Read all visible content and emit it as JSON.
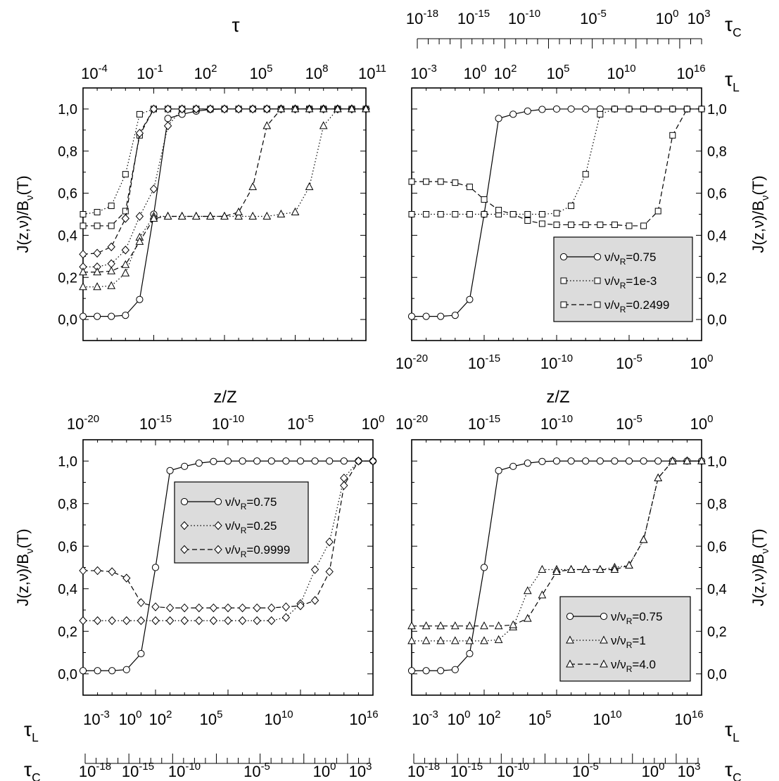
{
  "figure": {
    "labels": {
      "tau": "τ",
      "tau_C": "τ",
      "tau_C_sub": "C",
      "tau_L": "τ",
      "tau_L_sub": "L",
      "zZ": "z/Z",
      "ylabel": "J(z,ν)/B",
      "ylabel_sub": "ν",
      "ylabel_tail": "(T)"
    },
    "ytick_labels": [
      "0,0",
      "0,2",
      "0,4",
      "0,6",
      "0,8",
      "1,0"
    ]
  },
  "chart_data": [
    {
      "type": "line",
      "panel": "top-left",
      "x_label": "z/Z",
      "x_scale": "log",
      "xlim": [
        1e-20,
        1
      ],
      "top_axis": {
        "label": "τ",
        "scale": "log",
        "ticks": [
          "10^-4",
          "10^-1",
          "10^2",
          "10^5",
          "10^8",
          "10^11"
        ]
      },
      "ylabel": "J(z,ν)/Bν(T)",
      "ylim": [
        -0.1,
        1.1
      ],
      "yticks": [
        "0,0",
        "0,2",
        "0,4",
        "0,6",
        "0,8",
        "1,0"
      ],
      "legend": "none",
      "series": [
        {
          "style": "solid",
          "marker": "circle",
          "x": [
            1e-20,
            1e-19,
            1e-18,
            1e-17,
            1e-16,
            1e-15,
            1e-14,
            1e-13,
            1e-12,
            1e-11,
            1e-10,
            1e-09,
            1e-08,
            1e-07,
            1e-06,
            1e-05,
            0.0001,
            0.001,
            0.01,
            0.1,
            1
          ],
          "y": [
            0.015,
            0.015,
            0.015,
            0.02,
            0.095,
            0.5,
            0.955,
            0.975,
            0.99,
            0.998,
            1.0,
            1.0,
            1.0,
            1.0,
            1.0,
            1.0,
            1.0,
            1.0,
            1.0,
            1.0,
            1.0
          ]
        },
        {
          "style": "dotted",
          "marker": "square",
          "x": [
            1e-20,
            1e-19,
            1e-18,
            1e-17,
            1e-16,
            1e-15,
            1e-14,
            1e-13,
            1e-12,
            1e-11,
            1e-10,
            1e-09,
            1e-08,
            1e-07,
            1e-06,
            1e-05,
            0.0001,
            0.001,
            0.01,
            0.1,
            1
          ],
          "y": [
            0.5,
            0.51,
            0.54,
            0.69,
            0.975,
            1.0,
            1.0,
            1.0,
            1.0,
            1.0,
            1.0,
            1.0,
            1.0,
            1.0,
            1.0,
            1.0,
            1.0,
            1.0,
            1.0,
            1.0,
            1.0
          ]
        },
        {
          "style": "dashed",
          "marker": "square",
          "x": [
            1e-20,
            1e-19,
            1e-18,
            1e-17,
            1e-16,
            1e-15,
            1e-14,
            1e-13,
            1e-12,
            1e-11,
            1e-10,
            1e-09,
            1e-08,
            1e-07,
            1e-06,
            1e-05,
            0.0001,
            0.001,
            0.01,
            0.1,
            1
          ],
          "y": [
            0.445,
            0.445,
            0.445,
            0.515,
            0.875,
            1.0,
            1.0,
            1.0,
            1.0,
            1.0,
            1.0,
            1.0,
            1.0,
            1.0,
            1.0,
            1.0,
            1.0,
            1.0,
            1.0,
            1.0,
            1.0
          ]
        },
        {
          "style": "dotted",
          "marker": "diamond",
          "x": [
            1e-20,
            1e-19,
            1e-18,
            1e-17,
            1e-16,
            1e-15,
            1e-14,
            1e-13,
            1e-12,
            1e-11,
            1e-10,
            1e-09,
            1e-08,
            1e-07,
            1e-06,
            1e-05,
            0.0001,
            0.001,
            0.01,
            0.1,
            1
          ],
          "y": [
            0.25,
            0.25,
            0.265,
            0.33,
            0.49,
            0.62,
            0.92,
            1.0,
            1.0,
            1.0,
            1.0,
            1.0,
            1.0,
            1.0,
            1.0,
            1.0,
            1.0,
            1.0,
            1.0,
            1.0,
            1.0
          ]
        },
        {
          "style": "dashed",
          "marker": "diamond",
          "x": [
            1e-20,
            1e-19,
            1e-18,
            1e-17,
            1e-16,
            1e-15,
            1e-14,
            1e-13,
            1e-12,
            1e-11,
            1e-10,
            1e-09,
            1e-08,
            1e-07,
            1e-06,
            1e-05,
            0.0001,
            0.001,
            0.01,
            0.1,
            1
          ],
          "y": [
            0.31,
            0.315,
            0.345,
            0.48,
            0.885,
            1.0,
            1.0,
            1.0,
            1.0,
            1.0,
            1.0,
            1.0,
            1.0,
            1.0,
            1.0,
            1.0,
            1.0,
            1.0,
            1.0,
            1.0,
            1.0
          ]
        },
        {
          "style": "dotted",
          "marker": "triangle",
          "x": [
            1e-20,
            1e-19,
            1e-18,
            1e-17,
            1e-16,
            1e-15,
            1e-14,
            1e-13,
            1e-12,
            1e-11,
            1e-10,
            1e-09,
            1e-08,
            1e-07,
            1e-06,
            1e-05,
            0.0001,
            0.001,
            0.01,
            0.1,
            1
          ],
          "y": [
            0.155,
            0.155,
            0.16,
            0.22,
            0.39,
            0.49,
            0.49,
            0.49,
            0.49,
            0.49,
            0.49,
            0.49,
            0.49,
            0.49,
            0.5,
            0.51,
            0.63,
            0.92,
            1.0,
            1.0,
            1.0
          ]
        },
        {
          "style": "dashed",
          "marker": "triangle",
          "x": [
            1e-20,
            1e-19,
            1e-18,
            1e-17,
            1e-16,
            1e-15,
            1e-14,
            1e-13,
            1e-12,
            1e-11,
            1e-10,
            1e-09,
            1e-08,
            1e-07,
            1e-06,
            1e-05,
            0.0001,
            0.001,
            0.01,
            0.1,
            1
          ],
          "y": [
            0.225,
            0.225,
            0.23,
            0.26,
            0.37,
            0.48,
            0.49,
            0.49,
            0.49,
            0.49,
            0.49,
            0.51,
            0.63,
            0.92,
            1.0,
            1.0,
            1.0,
            1.0,
            1.0,
            1.0,
            1.0
          ]
        }
      ]
    },
    {
      "type": "line",
      "panel": "top-right",
      "x_label": "z/Z",
      "x_scale": "log",
      "xlim": [
        1e-20,
        1
      ],
      "xticks": [
        "10^-20",
        "10^-15",
        "10^-10",
        "10^-5",
        "10^0"
      ],
      "top_axis_C": {
        "label": "τC",
        "ticks": [
          "10^-18",
          "10^-15",
          "10^-10",
          "10^-5",
          "10^0",
          "10^3"
        ]
      },
      "top_axis_L": {
        "label": "τL",
        "ticks": [
          "10^-3",
          "10^0",
          "10^2",
          "10^5",
          "10^10",
          "10^16"
        ]
      },
      "ylabel": "J(z,ν)/Bν(T)",
      "ylim": [
        -0.1,
        1.1
      ],
      "legend": "lower-right",
      "series": [
        {
          "name": "ν/νR=0.75",
          "style": "solid",
          "marker": "circle",
          "x": [
            1e-20,
            1e-19,
            1e-18,
            1e-17,
            1e-16,
            1e-15,
            1e-14,
            1e-13,
            1e-12,
            1e-11,
            1e-10,
            1e-09,
            1e-08,
            1e-07,
            1e-06,
            1e-05,
            0.0001,
            0.001,
            0.01,
            0.1,
            1
          ],
          "y": [
            0.015,
            0.015,
            0.015,
            0.02,
            0.095,
            0.5,
            0.955,
            0.975,
            0.99,
            0.998,
            1.0,
            1.0,
            1.0,
            1.0,
            1.0,
            1.0,
            1.0,
            1.0,
            1.0,
            1.0,
            1.0
          ]
        },
        {
          "name": "ν/νR=1e-3",
          "style": "dotted",
          "marker": "square",
          "x": [
            1e-20,
            1e-19,
            1e-18,
            1e-17,
            1e-16,
            1e-15,
            1e-14,
            1e-13,
            1e-12,
            1e-11,
            1e-10,
            1e-09,
            1e-08,
            1e-07,
            1e-06,
            1e-05,
            0.0001,
            0.001,
            0.01,
            0.1,
            1
          ],
          "y": [
            0.5,
            0.5,
            0.5,
            0.5,
            0.5,
            0.5,
            0.5,
            0.5,
            0.5,
            0.5,
            0.505,
            0.54,
            0.69,
            0.975,
            1.0,
            1.0,
            1.0,
            1.0,
            1.0,
            1.0,
            1.0
          ]
        },
        {
          "name": "ν/νR=0.2499",
          "style": "dashed",
          "marker": "square",
          "x": [
            1e-20,
            1e-19,
            1e-18,
            1e-17,
            1e-16,
            1e-15,
            1e-14,
            1e-13,
            1e-12,
            1e-11,
            1e-10,
            1e-09,
            1e-08,
            1e-07,
            1e-06,
            1e-05,
            0.0001,
            0.001,
            0.01,
            0.1,
            1
          ],
          "y": [
            0.655,
            0.655,
            0.655,
            0.65,
            0.63,
            0.57,
            0.52,
            0.5,
            0.47,
            0.455,
            0.45,
            0.45,
            0.45,
            0.45,
            0.45,
            0.445,
            0.445,
            0.515,
            0.875,
            1.0,
            1.0
          ]
        }
      ]
    },
    {
      "type": "line",
      "panel": "bottom-left",
      "x_label": "z/Z",
      "x_scale": "log",
      "xlim": [
        1e-20,
        1
      ],
      "xticks": [
        "10^-20",
        "10^-15",
        "10^-10",
        "10^-5",
        "10^0"
      ],
      "bottom_axis_L": {
        "label": "τL",
        "ticks": [
          "10^-3",
          "10^0",
          "10^2",
          "10^5",
          "10^10",
          "10^16"
        ]
      },
      "bottom_axis_C": {
        "label": "τC",
        "ticks": [
          "10^-18",
          "10^-15",
          "10^-10",
          "10^-5",
          "10^0",
          "10^3"
        ]
      },
      "ylabel": "J(z,ν)/Bν(T)",
      "ylim": [
        -0.1,
        1.1
      ],
      "legend": "upper-center",
      "series": [
        {
          "name": "ν/νR=0.75",
          "style": "solid",
          "marker": "circle",
          "x": [
            1e-20,
            1e-19,
            1e-18,
            1e-17,
            1e-16,
            1e-15,
            1e-14,
            1e-13,
            1e-12,
            1e-11,
            1e-10,
            1e-09,
            1e-08,
            1e-07,
            1e-06,
            1e-05,
            0.0001,
            0.001,
            0.01,
            0.1,
            1
          ],
          "y": [
            0.015,
            0.015,
            0.015,
            0.02,
            0.095,
            0.5,
            0.955,
            0.975,
            0.99,
            0.998,
            1.0,
            1.0,
            1.0,
            1.0,
            1.0,
            1.0,
            1.0,
            1.0,
            1.0,
            1.0,
            1.0
          ]
        },
        {
          "name": "ν/νR=0.25",
          "style": "dotted",
          "marker": "diamond",
          "x": [
            1e-20,
            1e-19,
            1e-18,
            1e-17,
            1e-16,
            1e-15,
            1e-14,
            1e-13,
            1e-12,
            1e-11,
            1e-10,
            1e-09,
            1e-08,
            1e-07,
            1e-06,
            1e-05,
            0.0001,
            0.001,
            0.01,
            0.1,
            1
          ],
          "y": [
            0.25,
            0.25,
            0.25,
            0.25,
            0.25,
            0.25,
            0.25,
            0.25,
            0.25,
            0.25,
            0.25,
            0.25,
            0.25,
            0.25,
            0.265,
            0.33,
            0.49,
            0.62,
            0.92,
            1.0,
            1.0
          ]
        },
        {
          "name": "ν/νR=0.9999",
          "style": "dashed",
          "marker": "diamond",
          "x": [
            1e-20,
            1e-19,
            1e-18,
            1e-17,
            1e-16,
            1e-15,
            1e-14,
            1e-13,
            1e-12,
            1e-11,
            1e-10,
            1e-09,
            1e-08,
            1e-07,
            1e-06,
            1e-05,
            0.0001,
            0.001,
            0.01,
            0.1,
            1
          ],
          "y": [
            0.485,
            0.485,
            0.48,
            0.45,
            0.335,
            0.315,
            0.31,
            0.31,
            0.31,
            0.31,
            0.31,
            0.31,
            0.31,
            0.31,
            0.315,
            0.32,
            0.345,
            0.48,
            0.885,
            1.0,
            1.0
          ]
        }
      ]
    },
    {
      "type": "line",
      "panel": "bottom-right",
      "x_label": "z/Z",
      "x_scale": "log",
      "xlim": [
        1e-20,
        1
      ],
      "xticks": [
        "10^-20",
        "10^-15",
        "10^-10",
        "10^-5",
        "10^0"
      ],
      "bottom_axis_L": {
        "label": "τL",
        "ticks": [
          "10^-3",
          "10^0",
          "10^2",
          "10^5",
          "10^10",
          "10^16"
        ]
      },
      "bottom_axis_C": {
        "label": "τC",
        "ticks": [
          "10^-18",
          "10^-15",
          "10^-10",
          "10^-5",
          "10^0",
          "10^3"
        ]
      },
      "ylabel": "J(z,ν)/Bν(T)",
      "ylim": [
        -0.1,
        1.1
      ],
      "legend": "lower-right",
      "series": [
        {
          "name": "ν/νR=0.75",
          "style": "solid",
          "marker": "circle",
          "x": [
            1e-20,
            1e-19,
            1e-18,
            1e-17,
            1e-16,
            1e-15,
            1e-14,
            1e-13,
            1e-12,
            1e-11,
            1e-10,
            1e-09,
            1e-08,
            1e-07,
            1e-06,
            1e-05,
            0.0001,
            0.001,
            0.01,
            0.1,
            1
          ],
          "y": [
            0.015,
            0.015,
            0.015,
            0.02,
            0.095,
            0.5,
            0.955,
            0.975,
            0.99,
            0.998,
            1.0,
            1.0,
            1.0,
            1.0,
            1.0,
            1.0,
            1.0,
            1.0,
            1.0,
            1.0,
            1.0
          ]
        },
        {
          "name": "ν/νR=1",
          "style": "dotted",
          "marker": "triangle",
          "x": [
            1e-20,
            1e-19,
            1e-18,
            1e-17,
            1e-16,
            1e-15,
            1e-14,
            1e-13,
            1e-12,
            1e-11,
            1e-10,
            1e-09,
            1e-08,
            1e-07,
            1e-06,
            1e-05,
            0.0001,
            0.001,
            0.01,
            0.1,
            1
          ],
          "y": [
            0.155,
            0.155,
            0.155,
            0.155,
            0.155,
            0.155,
            0.16,
            0.22,
            0.39,
            0.49,
            0.49,
            0.49,
            0.49,
            0.49,
            0.5,
            0.51,
            0.63,
            0.92,
            1.0,
            1.0,
            1.0
          ]
        },
        {
          "name": "ν/νR=4.0",
          "style": "dashed",
          "marker": "triangle",
          "x": [
            1e-20,
            1e-19,
            1e-18,
            1e-17,
            1e-16,
            1e-15,
            1e-14,
            1e-13,
            1e-12,
            1e-11,
            1e-10,
            1e-09,
            1e-08,
            1e-07,
            1e-06,
            1e-05,
            0.0001,
            0.001,
            0.01,
            0.1,
            1
          ],
          "y": [
            0.225,
            0.225,
            0.225,
            0.225,
            0.225,
            0.225,
            0.225,
            0.23,
            0.26,
            0.37,
            0.48,
            0.49,
            0.49,
            0.49,
            0.49,
            0.51,
            0.63,
            0.92,
            1.0,
            1.0,
            1.0
          ]
        }
      ]
    }
  ]
}
